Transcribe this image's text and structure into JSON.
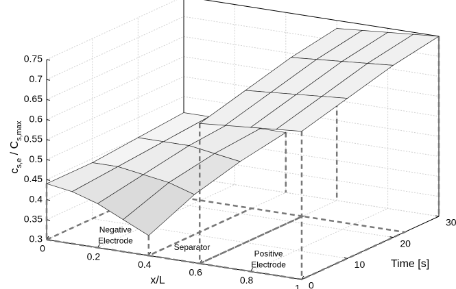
{
  "chart_data": {
    "type": "surface3d",
    "xlabel": "x/L",
    "ylabel": "Time [s]",
    "zlabel": [
      "c",
      "s,e",
      " / C",
      "s,max"
    ],
    "xlim": [
      0,
      1
    ],
    "xticks": [
      0,
      0.2,
      0.4,
      0.6,
      0.8,
      1
    ],
    "ylim": [
      0,
      30
    ],
    "yticks": [
      0,
      10,
      20,
      30
    ],
    "zlim": [
      0.3,
      0.75
    ],
    "zticks": [
      0.3,
      0.35,
      0.4,
      0.45,
      0.5,
      0.55,
      0.6,
      0.65,
      0.7,
      0.75
    ],
    "grid": true,
    "color": "#f4f4f4",
    "time": [
      0,
      10,
      20,
      30
    ],
    "surfaces": [
      {
        "x": [
          0,
          0.1,
          0.2,
          0.3,
          0.4
        ],
        "z": [
          [
            0.44,
            0.43,
            0.41,
            0.38,
            0.35
          ],
          [
            0.44,
            0.44,
            0.43,
            0.42,
            0.4
          ],
          [
            0.45,
            0.45,
            0.45,
            0.44,
            0.43
          ],
          [
            0.46,
            0.46,
            0.46,
            0.45,
            0.45
          ]
        ]
      },
      {
        "x": [
          0.6,
          0.7,
          0.8,
          0.9,
          1
        ],
        "z": [
          [
            0.65,
            0.655,
            0.66,
            0.665,
            0.67
          ],
          [
            0.68,
            0.685,
            0.69,
            0.695,
            0.7
          ],
          [
            0.71,
            0.715,
            0.72,
            0.725,
            0.73
          ],
          [
            0.73,
            0.735,
            0.74,
            0.745,
            0.75
          ]
        ]
      }
    ],
    "annotations": [
      [
        "Negative",
        "Electrode"
      ],
      [
        "Separator"
      ],
      [
        "Positive",
        "Electrode"
      ]
    ]
  }
}
